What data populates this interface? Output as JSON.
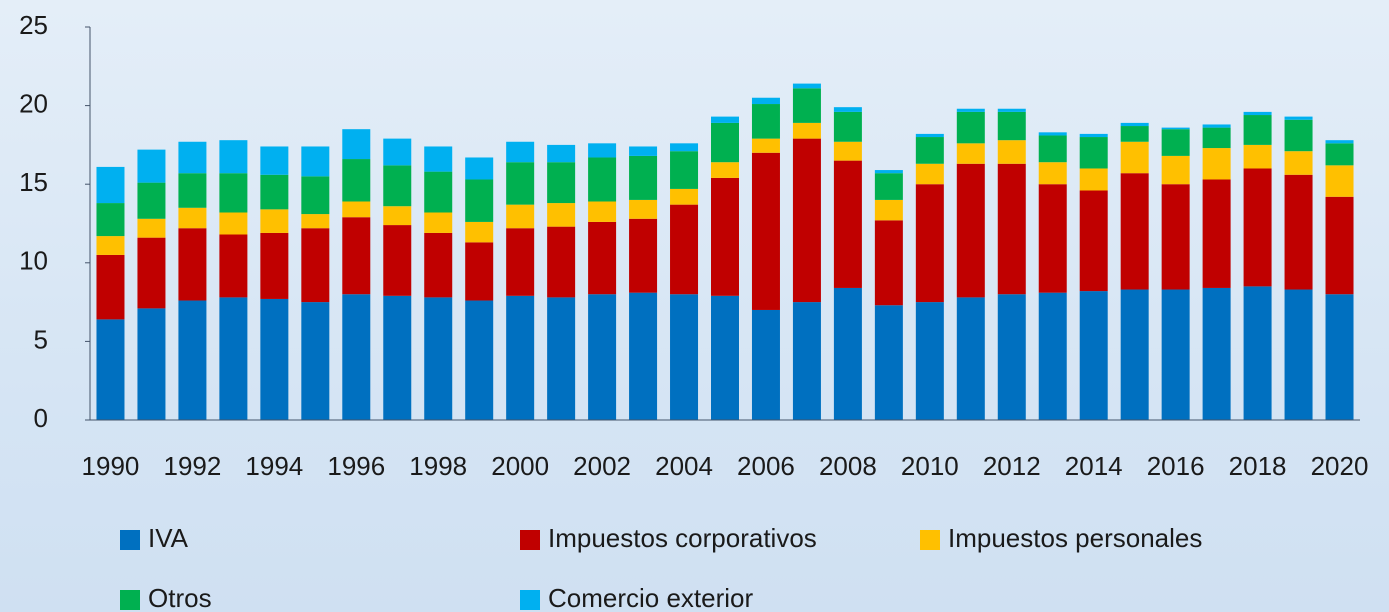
{
  "chart_data": {
    "type": "stacked_bar",
    "categories": [
      "1990",
      null,
      "1992",
      null,
      "1994",
      null,
      "1996",
      null,
      "1998",
      null,
      "2000",
      null,
      "2002",
      null,
      "2004",
      null,
      "2006",
      null,
      "2008",
      null,
      "2010",
      null,
      "2012",
      null,
      "2014",
      null,
      "2016",
      null,
      "2018",
      null,
      "2020"
    ],
    "series": [
      {
        "name": "IVA",
        "color": "#0070c0",
        "values": [
          6.4,
          7.1,
          7.6,
          7.8,
          7.7,
          7.5,
          8.0,
          7.9,
          7.8,
          7.6,
          7.9,
          7.8,
          8.0,
          8.1,
          8.0,
          7.9,
          7.0,
          7.5,
          8.4,
          7.3,
          7.5,
          7.8,
          8.0,
          8.1,
          8.2,
          8.3,
          8.3,
          8.4,
          8.5,
          8.3,
          8.0
        ]
      },
      {
        "name": "Impuestos corporativos",
        "color": "#c00000",
        "values": [
          4.1,
          4.5,
          4.6,
          4.0,
          4.2,
          4.7,
          4.9,
          4.5,
          4.1,
          3.7,
          4.3,
          4.5,
          4.6,
          4.7,
          5.7,
          7.5,
          10.0,
          10.4,
          8.1,
          5.4,
          7.5,
          8.5,
          8.3,
          6.9,
          6.4,
          7.4,
          6.7,
          6.9,
          7.5,
          7.3,
          6.2
        ]
      },
      {
        "name": "Impuestos personales",
        "color": "#ffc000",
        "values": [
          1.2,
          1.2,
          1.3,
          1.4,
          1.5,
          0.9,
          1.0,
          1.2,
          1.3,
          1.3,
          1.5,
          1.5,
          1.3,
          1.2,
          1.0,
          1.0,
          0.9,
          1.0,
          1.2,
          1.3,
          1.3,
          1.3,
          1.5,
          1.4,
          1.4,
          2.0,
          1.8,
          2.0,
          1.5,
          1.5,
          2.0
        ]
      },
      {
        "name": "Otros",
        "color": "#00b050",
        "values": [
          2.1,
          2.3,
          2.2,
          2.5,
          2.2,
          2.4,
          2.7,
          2.6,
          2.6,
          2.7,
          2.7,
          2.6,
          2.8,
          2.8,
          2.4,
          2.5,
          2.2,
          2.2,
          1.9,
          1.7,
          1.7,
          2.0,
          1.8,
          1.7,
          2.0,
          1.0,
          1.7,
          1.3,
          1.9,
          2.0,
          1.4
        ]
      },
      {
        "name": "Comercio exterior",
        "color": "#00b0f0",
        "values": [
          2.3,
          2.1,
          2.0,
          2.1,
          1.8,
          1.9,
          1.9,
          1.7,
          1.6,
          1.4,
          1.3,
          1.1,
          0.9,
          0.6,
          0.5,
          0.4,
          0.4,
          0.3,
          0.3,
          0.2,
          0.2,
          0.2,
          0.2,
          0.2,
          0.2,
          0.2,
          0.1,
          0.2,
          0.2,
          0.2,
          0.2
        ]
      }
    ],
    "ylim": [
      0,
      25
    ],
    "yticks": [
      0,
      5,
      10,
      15,
      20,
      25
    ],
    "grid": false,
    "legend": "bottom"
  }
}
